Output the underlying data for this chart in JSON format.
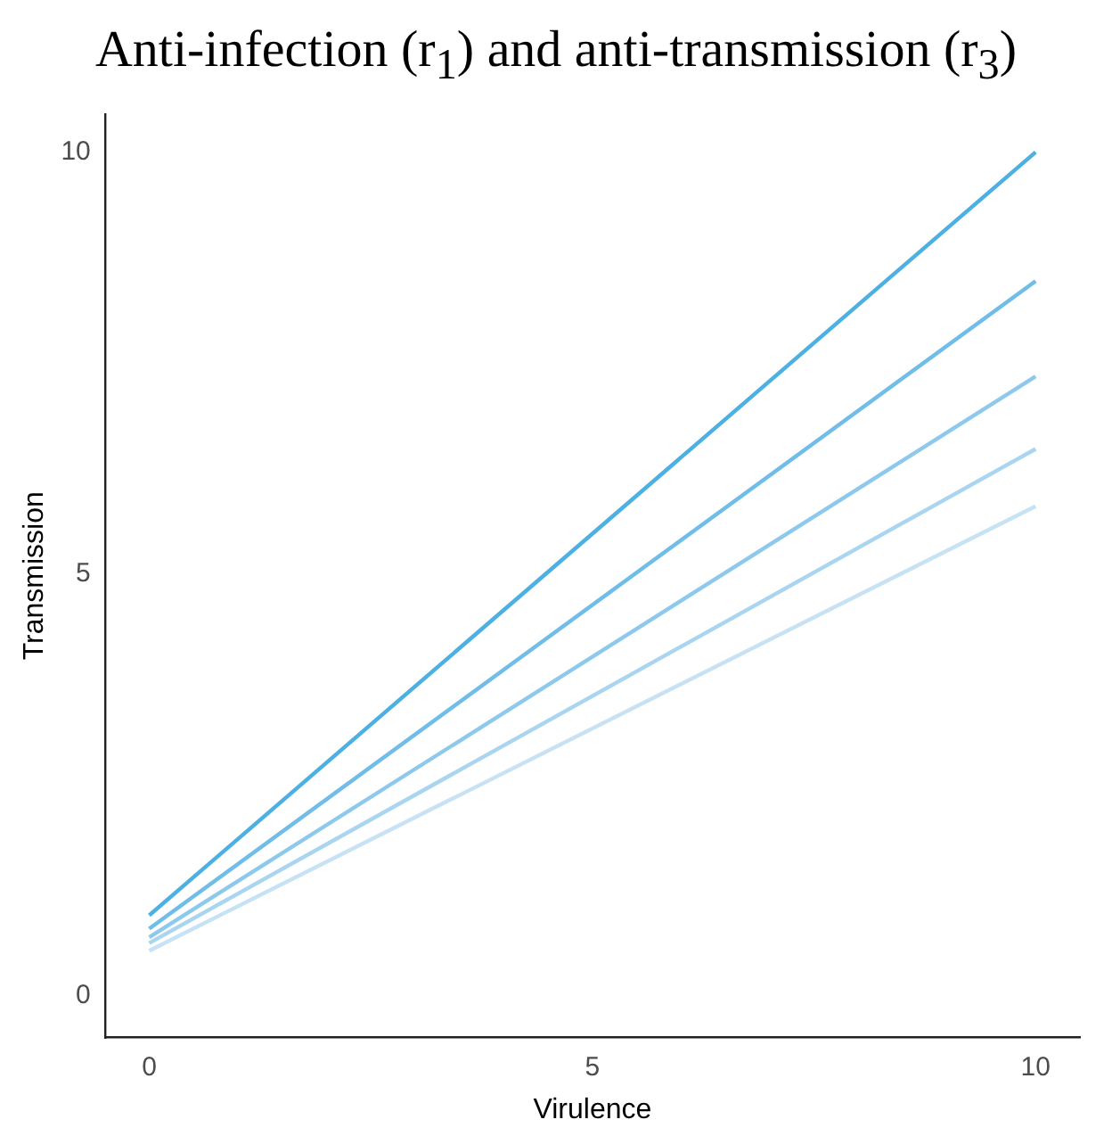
{
  "chart_data": {
    "type": "line",
    "title": "Anti-infection (r$_{1}$) and anti-transmission (r$_{3}$)",
    "xlabel": "Virulence",
    "ylabel": "Transmission",
    "x": [
      0,
      10
    ],
    "series": [
      {
        "color": "#4cb0e3",
        "values": [
          0.95,
          10.0
        ]
      },
      {
        "color": "#6fbde8",
        "values": [
          0.79,
          8.47
        ]
      },
      {
        "color": "#8dc9ec",
        "values": [
          0.69,
          7.34
        ]
      },
      {
        "color": "#aad5f0",
        "values": [
          0.62,
          6.48
        ]
      },
      {
        "color": "#c6e2f4",
        "values": [
          0.53,
          5.8
        ]
      }
    ],
    "xlim": [
      -0.5,
      10.5
    ],
    "ylim": [
      -0.5,
      10.45
    ],
    "xticks": [
      0,
      5,
      10
    ],
    "yticks": [
      0,
      5,
      10
    ],
    "grid": false,
    "legend": false,
    "marker": "none",
    "line_style": "solid"
  }
}
